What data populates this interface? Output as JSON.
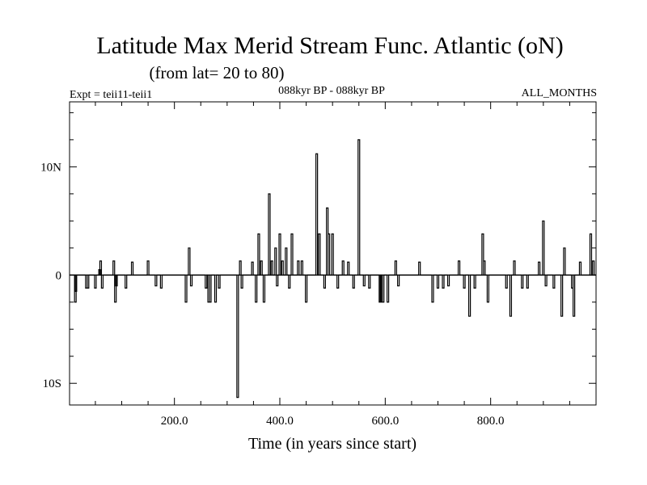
{
  "chart_data": {
    "type": "line",
    "title": "Latitude Max Merid Stream Func. Atlantic (oN)",
    "subtitle": "(from lat= 20 to 80)",
    "left_label": "Expt = teii11-teii1",
    "center_label": "088kyr BP - 088kyr BP",
    "right_label": "ALL_MONTHS",
    "xlabel": "Time (in years since start)",
    "ylabel": "",
    "xlim": [
      1,
      1000
    ],
    "ylim": [
      -12,
      16
    ],
    "x_ticks": [
      200,
      400,
      600,
      800
    ],
    "x_tick_labels": [
      "200.0",
      "400.0",
      "600.0",
      "800.0"
    ],
    "y_ticks": [
      -10,
      0,
      10
    ],
    "y_tick_labels": [
      "10S",
      "0",
      "10N"
    ],
    "grid": false,
    "series": [
      {
        "values": [
          [
            12,
            -2.5
          ],
          [
            13,
            -1.5
          ],
          [
            33,
            -1.2
          ],
          [
            36,
            -1.2
          ],
          [
            50,
            -1.2
          ],
          [
            58,
            0.5
          ],
          [
            60,
            1.3
          ],
          [
            63,
            -1.2
          ],
          [
            85,
            1.3
          ],
          [
            88,
            -2.5
          ],
          [
            90,
            -1
          ],
          [
            108,
            -1.2
          ],
          [
            120,
            1.2
          ],
          [
            150,
            1.3
          ],
          [
            165,
            -1
          ],
          [
            175,
            -1.2
          ],
          [
            222,
            -2.5
          ],
          [
            228,
            2.5
          ],
          [
            232,
            -1
          ],
          [
            260,
            -1.2
          ],
          [
            265,
            -2.5
          ],
          [
            268,
            -2.5
          ],
          [
            278,
            -2.5
          ],
          [
            285,
            -1.2
          ],
          [
            320,
            -11.3
          ],
          [
            325,
            1.3
          ],
          [
            328,
            -1.2
          ],
          [
            348,
            1.2
          ],
          [
            355,
            -2.5
          ],
          [
            360,
            3.8
          ],
          [
            365,
            1.3
          ],
          [
            370,
            -2.5
          ],
          [
            380,
            7.5
          ],
          [
            385,
            1.3
          ],
          [
            392,
            2.5
          ],
          [
            395,
            -1
          ],
          [
            400,
            3.8
          ],
          [
            405,
            1.3
          ],
          [
            412,
            2.5
          ],
          [
            418,
            -1.2
          ],
          [
            423,
            3.8
          ],
          [
            435,
            1.3
          ],
          [
            442,
            1.3
          ],
          [
            450,
            -2.5
          ],
          [
            470,
            11.2
          ],
          [
            475,
            3.8
          ],
          [
            485,
            -1.2
          ],
          [
            490,
            6.2
          ],
          [
            493,
            3.8
          ],
          [
            500,
            3.8
          ],
          [
            510,
            -1.2
          ],
          [
            520,
            1.3
          ],
          [
            530,
            1.2
          ],
          [
            540,
            -1.2
          ],
          [
            550,
            12.5
          ],
          [
            560,
            -1
          ],
          [
            570,
            -1.2
          ],
          [
            590,
            -2.5
          ],
          [
            592,
            -2.5
          ],
          [
            596,
            -2.5
          ],
          [
            605,
            -2.5
          ],
          [
            620,
            1.3
          ],
          [
            625,
            -1
          ],
          [
            665,
            1.2
          ],
          [
            690,
            -2.5
          ],
          [
            700,
            -1.2
          ],
          [
            710,
            -1.2
          ],
          [
            720,
            -1
          ],
          [
            740,
            1.3
          ],
          [
            750,
            -1.2
          ],
          [
            760,
            -3.8
          ],
          [
            770,
            -1.2
          ],
          [
            785,
            3.8
          ],
          [
            788,
            1.3
          ],
          [
            795,
            -2.5
          ],
          [
            830,
            -1.2
          ],
          [
            838,
            -3.8
          ],
          [
            845,
            1.3
          ],
          [
            860,
            -1.2
          ],
          [
            870,
            -1.2
          ],
          [
            892,
            1.2
          ],
          [
            900,
            5
          ],
          [
            905,
            -1
          ],
          [
            920,
            -1.2
          ],
          [
            935,
            -3.8
          ],
          [
            940,
            2.5
          ],
          [
            955,
            -1.2
          ],
          [
            958,
            -3.8
          ],
          [
            970,
            1.2
          ],
          [
            990,
            3.8
          ],
          [
            995,
            1.3
          ]
        ]
      }
    ]
  }
}
